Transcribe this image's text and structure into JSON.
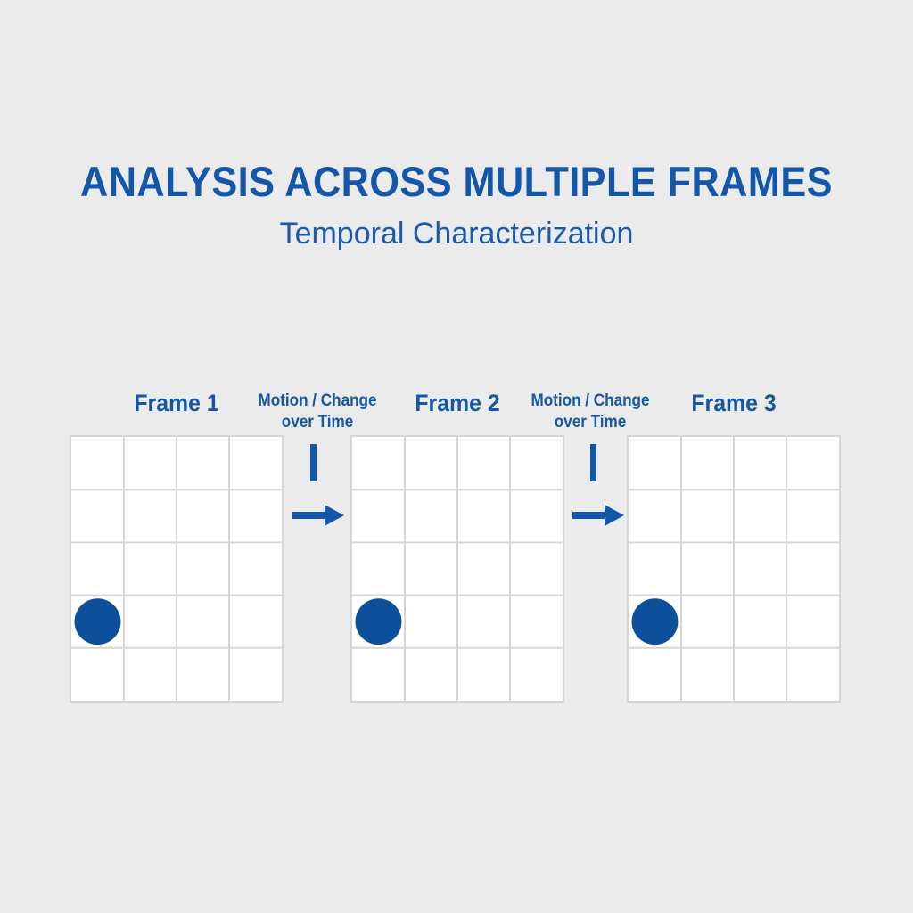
{
  "title": "ANALYSIS ACROSS MULTIPLE FRAMES",
  "subtitle": "Temporal Characterization",
  "frames": [
    {
      "label": "Frame 1",
      "dot": {
        "row": 4,
        "col": 1
      }
    },
    {
      "label": "Frame 2",
      "dot": {
        "row": 4,
        "col": 1
      }
    },
    {
      "label": "Frame 3",
      "dot": {
        "row": 4,
        "col": 1
      }
    }
  ],
  "transitions": [
    {
      "label_line1": "Motion / Change",
      "label_line2": "over Time"
    },
    {
      "label_line1": "Motion / Change",
      "label_line2": "over Time"
    }
  ],
  "grid": {
    "rows": 5,
    "cols": 4
  },
  "colors": {
    "accent": "#1457a8",
    "dot": "#0e4f9c",
    "grid_line": "#d6d6d6",
    "background": "#ebebeb"
  }
}
